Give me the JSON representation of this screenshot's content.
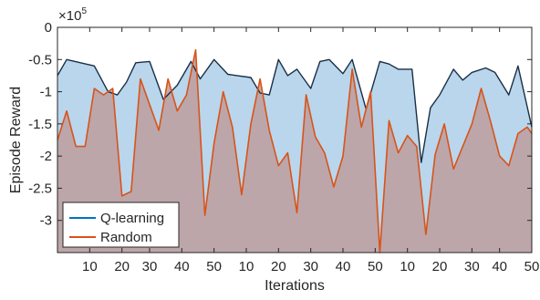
{
  "chart_data": {
    "type": "area",
    "title": "",
    "xlabel": "Iterations",
    "ylabel": "Episode Reward",
    "y_exponent_label": "×10",
    "y_exponent_power": "5",
    "ylim": [
      -3.5,
      0
    ],
    "yticks": [
      0,
      -0.5,
      -1,
      -1.5,
      -2,
      -2.5,
      -3
    ],
    "ytick_labels": [
      "0",
      "-0.5",
      "-1",
      "-1.5",
      "-2",
      "-2.5",
      "-3"
    ],
    "x_tick_positions": [
      7,
      14,
      20,
      27,
      34,
      41,
      48,
      55,
      62,
      69,
      76,
      83,
      90,
      96,
      103
    ],
    "x_tick_labels": [
      "10",
      "20",
      "30",
      "40",
      "50",
      "10",
      "20",
      "30",
      "40",
      "50",
      "10",
      "20",
      "30",
      "40",
      "50"
    ],
    "xlim": [
      0,
      103
    ],
    "grid": false,
    "legend_position": "bottom-left",
    "series": [
      {
        "name": "Q-learning",
        "color": "#0072BD",
        "fill": "#B9D6EC",
        "x": [
          0,
          2,
          5,
          8,
          11,
          13,
          15,
          17,
          20,
          23,
          26,
          29,
          31,
          34,
          37,
          39,
          42,
          44,
          46,
          48,
          50,
          52,
          55,
          57,
          59,
          62,
          64,
          67,
          70,
          72,
          74,
          77,
          79,
          81,
          83,
          86,
          88,
          90,
          93,
          95,
          98,
          100,
          103
        ],
        "values": [
          -0.75,
          -0.5,
          -0.55,
          -0.6,
          -1.0,
          -1.05,
          -0.85,
          -0.55,
          -0.53,
          -1.12,
          -0.9,
          -0.53,
          -0.8,
          -0.5,
          -0.73,
          -0.75,
          -0.78,
          -1.02,
          -1.05,
          -0.5,
          -0.75,
          -0.65,
          -0.95,
          -0.53,
          -0.5,
          -0.72,
          -0.5,
          -1.27,
          -0.53,
          -0.57,
          -0.65,
          -0.65,
          -2.1,
          -1.25,
          -1.05,
          -0.65,
          -0.82,
          -0.7,
          -0.63,
          -0.7,
          -1.05,
          -0.6,
          -1.55
        ]
      },
      {
        "name": "Random",
        "color": "#D95319",
        "fill": "#BC9E9E",
        "x": [
          0,
          2,
          4,
          6,
          8,
          10,
          12,
          14,
          16,
          18,
          20,
          22,
          24,
          26,
          28,
          30,
          32,
          34,
          36,
          38,
          40,
          42,
          44,
          46,
          48,
          50,
          52,
          54,
          56,
          58,
          60,
          62,
          64,
          66,
          68,
          70,
          72,
          74,
          76,
          78,
          80,
          82,
          84,
          86,
          88,
          90,
          92,
          94,
          96,
          98,
          100,
          102,
          103
        ],
        "values": [
          -1.75,
          -1.3,
          -1.85,
          -1.85,
          -0.95,
          -1.05,
          -0.95,
          -2.62,
          -2.55,
          -0.8,
          -1.2,
          -1.6,
          -0.8,
          -1.3,
          -1.05,
          -0.35,
          -2.92,
          -1.8,
          -1.0,
          -1.55,
          -2.6,
          -1.5,
          -0.8,
          -1.6,
          -2.15,
          -1.95,
          -2.88,
          -1.05,
          -1.7,
          -1.95,
          -2.48,
          -2.0,
          -0.65,
          -1.55,
          -1.0,
          -3.5,
          -1.45,
          -1.95,
          -1.68,
          -1.85,
          -3.22,
          -1.98,
          -1.5,
          -2.2,
          -1.85,
          -1.5,
          -0.95,
          -1.45,
          -2.0,
          -2.15,
          -1.65,
          -1.55,
          -1.65
        ]
      }
    ]
  }
}
